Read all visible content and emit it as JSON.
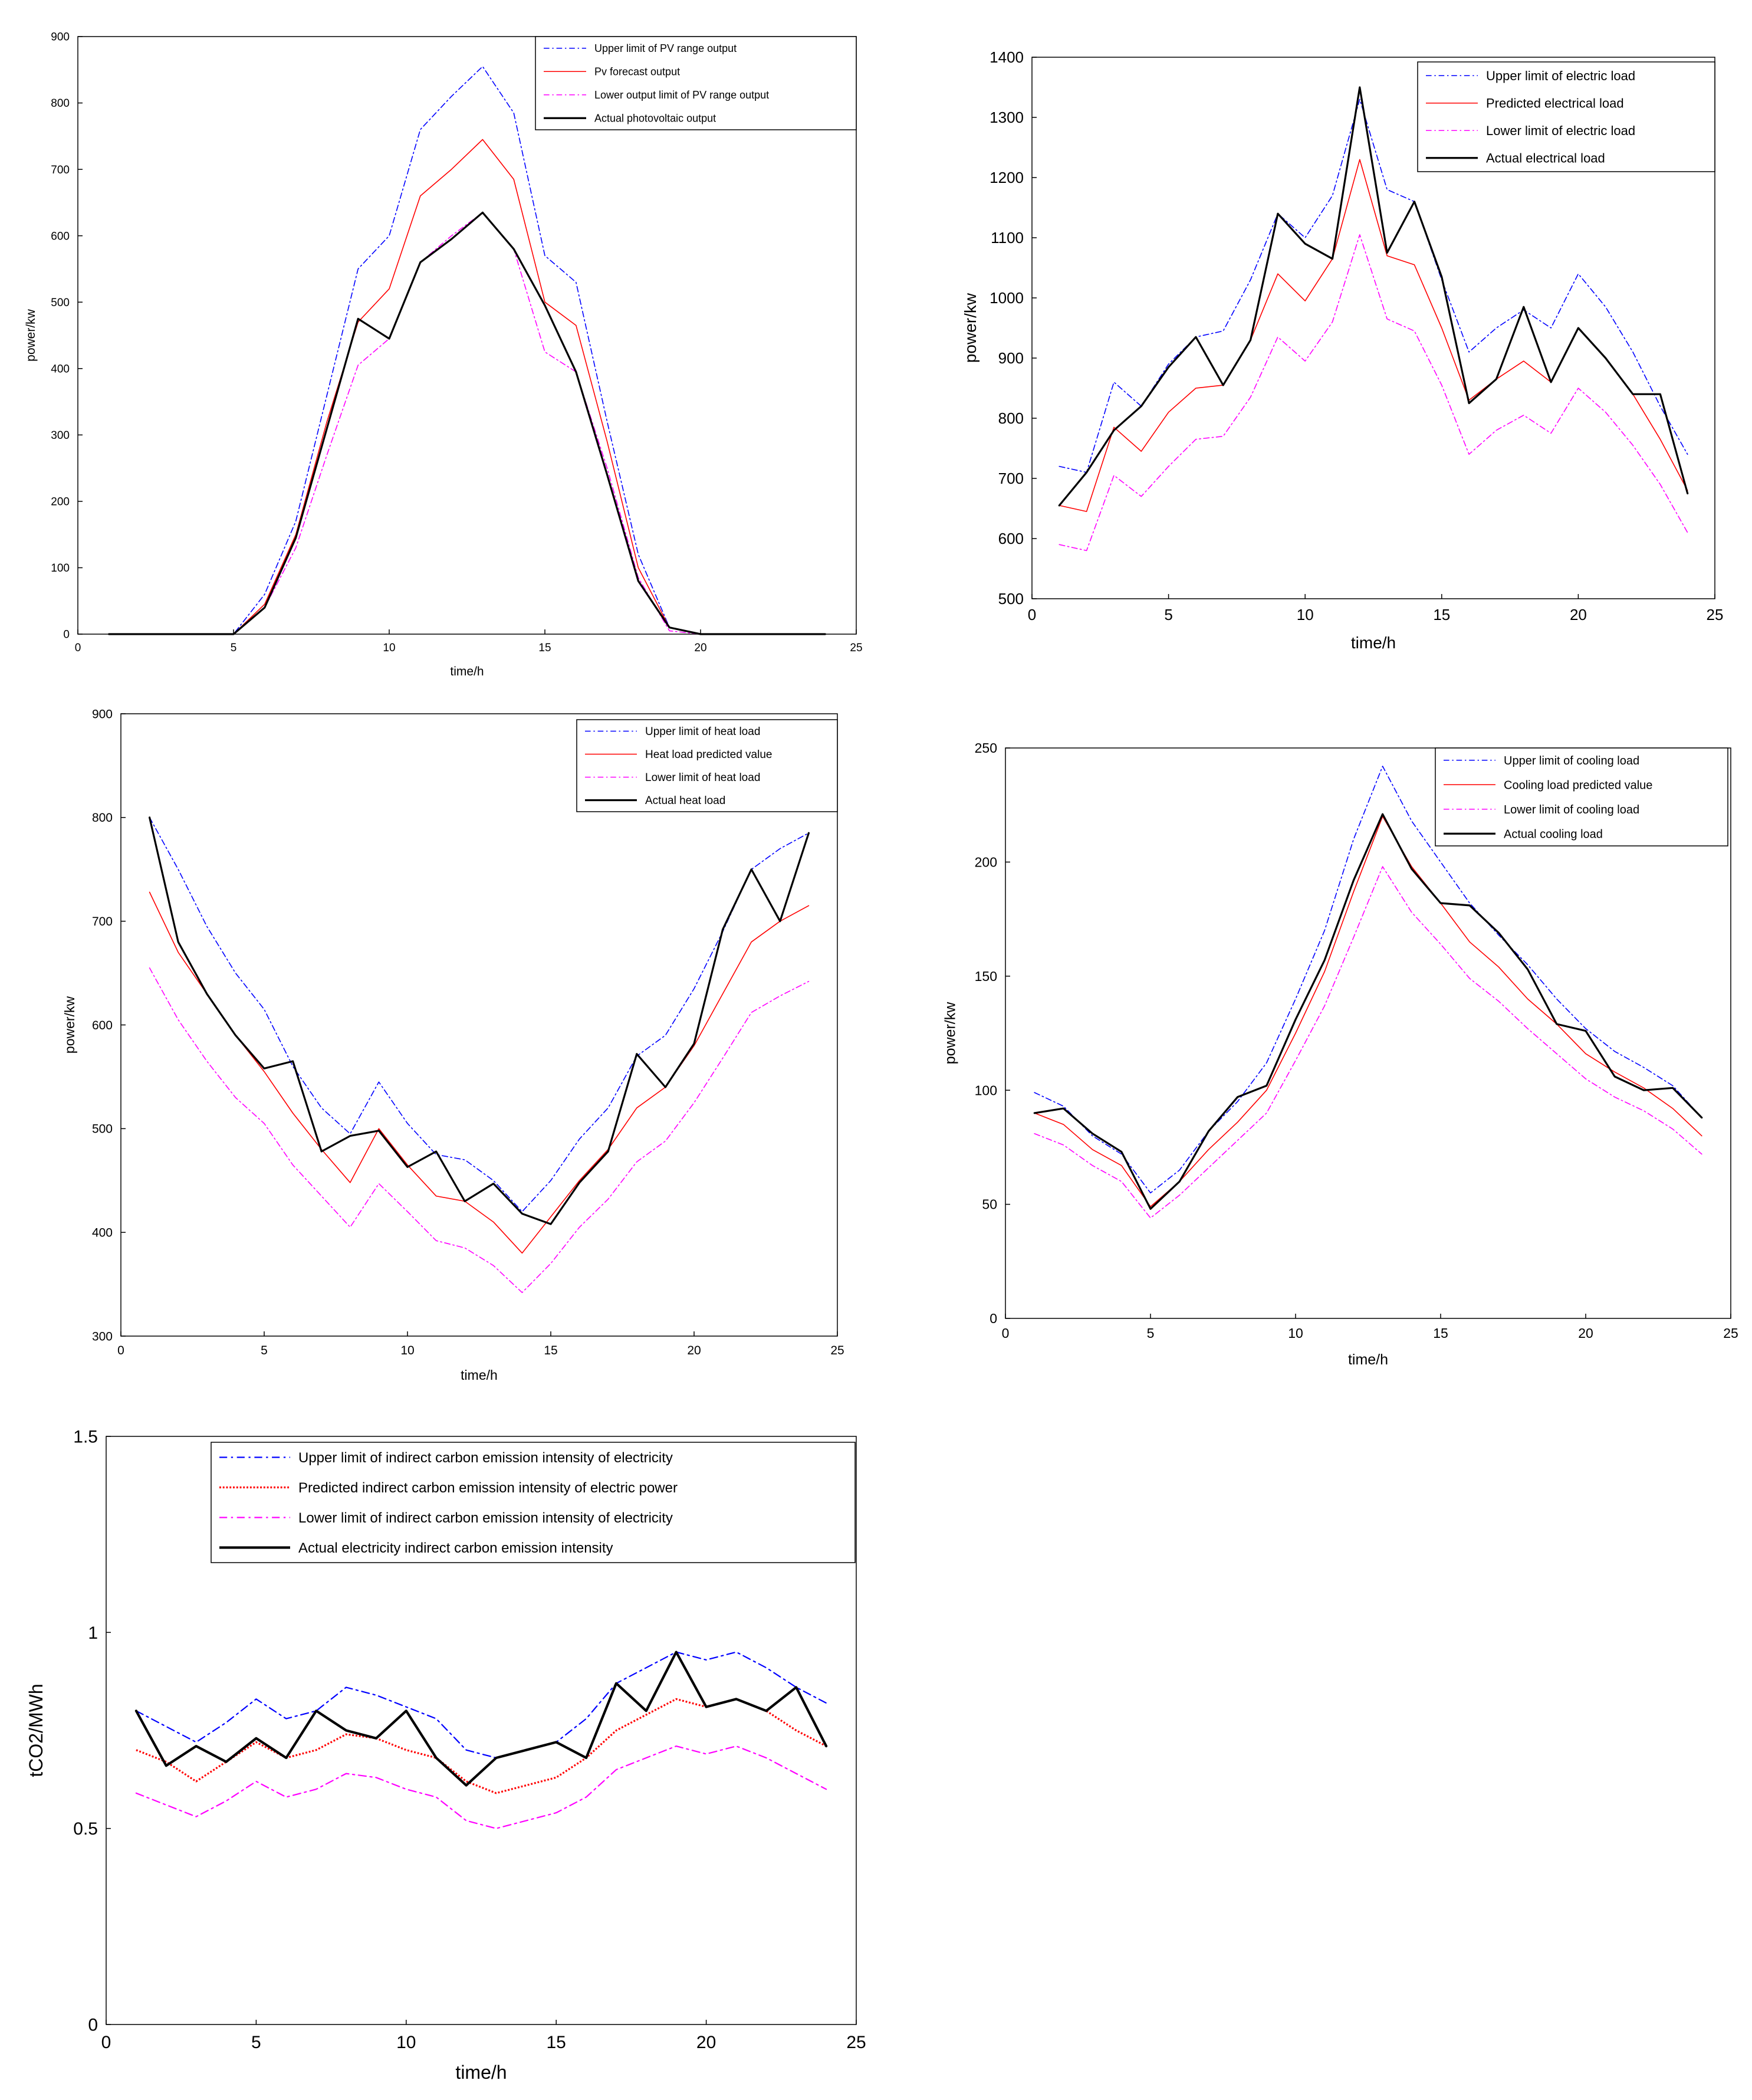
{
  "chart_data": [
    {
      "type": "line",
      "id": "pv",
      "title": "",
      "xlabel": "time/h",
      "ylabel": "power/kw",
      "xlim": [
        0,
        25
      ],
      "ylim": [
        0,
        900
      ],
      "xticks": [
        0,
        5,
        10,
        15,
        20,
        25
      ],
      "yticks": [
        0,
        100,
        200,
        300,
        400,
        500,
        600,
        700,
        800,
        900
      ],
      "x": [
        1,
        2,
        3,
        4,
        5,
        6,
        7,
        8,
        9,
        10,
        11,
        12,
        13,
        14,
        15,
        16,
        17,
        18,
        19,
        20,
        21,
        22,
        23,
        24
      ],
      "legend_position": "top-right",
      "series": [
        {
          "name": "Upper limit of PV range output",
          "color": "#0000ff",
          "style": "dashdot",
          "width": 1.6,
          "values": [
            0,
            0,
            0,
            0,
            0,
            60,
            170,
            360,
            550,
            600,
            760,
            810,
            855,
            785,
            570,
            530,
            320,
            120,
            10,
            0,
            0,
            0,
            0,
            0
          ]
        },
        {
          "name": "Pv forecast output",
          "color": "#ff0000",
          "style": "solid",
          "width": 1.6,
          "values": [
            0,
            0,
            0,
            0,
            0,
            45,
            150,
            320,
            470,
            520,
            660,
            700,
            745,
            685,
            500,
            465,
            290,
            100,
            10,
            0,
            0,
            0,
            0,
            0
          ]
        },
        {
          "name": "Lower output limit of PV range output",
          "color": "#ff00ff",
          "style": "dashdot",
          "width": 1.6,
          "values": [
            0,
            0,
            0,
            0,
            0,
            40,
            130,
            270,
            405,
            445,
            560,
            600,
            635,
            580,
            425,
            395,
            250,
            85,
            5,
            0,
            0,
            0,
            0,
            0
          ]
        },
        {
          "name": "Actual photovoltaic output",
          "color": "#000000",
          "style": "solid",
          "width": 3.2,
          "values": [
            0,
            0,
            0,
            0,
            0,
            40,
            145,
            310,
            475,
            445,
            560,
            595,
            635,
            580,
            495,
            395,
            240,
            80,
            10,
            0,
            0,
            0,
            0,
            0
          ]
        }
      ]
    },
    {
      "type": "line",
      "id": "electric",
      "title": "",
      "xlabel": "time/h",
      "ylabel": "power/kw",
      "xlim": [
        0,
        25
      ],
      "ylim": [
        500,
        1400
      ],
      "xticks": [
        0,
        5,
        10,
        15,
        20,
        25
      ],
      "yticks": [
        500,
        600,
        700,
        800,
        900,
        1000,
        1100,
        1200,
        1300,
        1400
      ],
      "x": [
        1,
        2,
        3,
        4,
        5,
        6,
        7,
        8,
        9,
        10,
        11,
        12,
        13,
        14,
        15,
        16,
        17,
        18,
        19,
        20,
        21,
        22,
        23,
        24
      ],
      "legend_position": "top-right",
      "series": [
        {
          "name": "Upper limit of electric load",
          "color": "#0000ff",
          "style": "dashdot",
          "width": 1.6,
          "values": [
            720,
            710,
            860,
            820,
            890,
            935,
            945,
            1030,
            1140,
            1100,
            1170,
            1330,
            1180,
            1160,
            1030,
            910,
            950,
            980,
            950,
            1040,
            985,
            910,
            820,
            740
          ]
        },
        {
          "name": "Predicted electrical load",
          "color": "#ff0000",
          "style": "solid",
          "width": 1.6,
          "values": [
            655,
            645,
            785,
            745,
            810,
            850,
            855,
            930,
            1040,
            995,
            1065,
            1230,
            1070,
            1055,
            950,
            830,
            865,
            895,
            860,
            950,
            900,
            840,
            765,
            680
          ]
        },
        {
          "name": "Lower limit of electric load",
          "color": "#ff00ff",
          "style": "dashdot",
          "width": 1.6,
          "values": [
            590,
            580,
            705,
            670,
            720,
            765,
            770,
            835,
            935,
            895,
            960,
            1105,
            965,
            945,
            855,
            740,
            780,
            805,
            775,
            850,
            810,
            755,
            690,
            610
          ]
        },
        {
          "name": "Actual electrical load",
          "color": "#000000",
          "style": "solid",
          "width": 3.2,
          "values": [
            655,
            710,
            780,
            820,
            885,
            935,
            855,
            930,
            1140,
            1090,
            1065,
            1350,
            1075,
            1160,
            1035,
            825,
            865,
            985,
            860,
            950,
            900,
            840,
            840,
            675
          ]
        }
      ]
    },
    {
      "type": "line",
      "id": "heat",
      "title": "",
      "xlabel": "time/h",
      "ylabel": "power/kw",
      "xlim": [
        0,
        25
      ],
      "ylim": [
        300,
        900
      ],
      "xticks": [
        0,
        5,
        10,
        15,
        20,
        25
      ],
      "yticks": [
        300,
        400,
        500,
        600,
        700,
        800,
        900
      ],
      "x": [
        1,
        2,
        3,
        4,
        5,
        6,
        7,
        8,
        9,
        10,
        11,
        12,
        13,
        14,
        15,
        16,
        17,
        18,
        19,
        20,
        21,
        22,
        23,
        24
      ],
      "legend_position": "top-right",
      "series": [
        {
          "name": "Upper limit of heat load",
          "color": "#0000ff",
          "style": "dashdot",
          "width": 1.6,
          "values": [
            800,
            750,
            695,
            650,
            615,
            560,
            520,
            495,
            545,
            505,
            475,
            470,
            450,
            420,
            450,
            490,
            520,
            570,
            590,
            635,
            690,
            750,
            770,
            785
          ]
        },
        {
          "name": "Heat load predicted value",
          "color": "#ff0000",
          "style": "solid",
          "width": 1.6,
          "values": [
            728,
            670,
            630,
            590,
            555,
            515,
            480,
            448,
            500,
            465,
            435,
            430,
            410,
            380,
            415,
            450,
            480,
            520,
            540,
            580,
            630,
            680,
            700,
            715
          ]
        },
        {
          "name": "Lower limit of heat load",
          "color": "#ff00ff",
          "style": "dashdot",
          "width": 1.6,
          "values": [
            655,
            605,
            565,
            530,
            505,
            465,
            435,
            405,
            447,
            420,
            392,
            385,
            368,
            342,
            370,
            405,
            432,
            468,
            488,
            525,
            568,
            612,
            628,
            642
          ]
        },
        {
          "name": "Actual heat load",
          "color": "#000000",
          "style": "solid",
          "width": 3.2,
          "values": [
            800,
            680,
            630,
            590,
            558,
            565,
            478,
            493,
            498,
            463,
            478,
            430,
            447,
            418,
            408,
            448,
            478,
            572,
            540,
            582,
            692,
            750,
            700,
            785
          ]
        }
      ]
    },
    {
      "type": "line",
      "id": "cooling",
      "title": "",
      "xlabel": "time/h",
      "ylabel": "power/kw",
      "xlim": [
        0,
        25
      ],
      "ylim": [
        0,
        250
      ],
      "xticks": [
        0,
        5,
        10,
        15,
        20,
        25
      ],
      "yticks": [
        0,
        50,
        100,
        150,
        200,
        250
      ],
      "x": [
        1,
        2,
        3,
        4,
        5,
        6,
        7,
        8,
        9,
        10,
        11,
        12,
        13,
        14,
        15,
        16,
        17,
        18,
        19,
        20,
        21,
        22,
        23,
        24
      ],
      "legend_position": "top-right",
      "series": [
        {
          "name": "Upper limit of cooling load",
          "color": "#0000ff",
          "style": "dashdot",
          "width": 1.6,
          "values": [
            99,
            93,
            80,
            72,
            55,
            65,
            82,
            95,
            112,
            140,
            170,
            210,
            242,
            218,
            200,
            182,
            168,
            155,
            140,
            127,
            117,
            110,
            102,
            88
          ]
        },
        {
          "name": "Cooling load predicted value",
          "color": "#ff0000",
          "style": "solid",
          "width": 1.6,
          "values": [
            90,
            85,
            74,
            67,
            49,
            60,
            74,
            86,
            100,
            125,
            152,
            187,
            220,
            198,
            182,
            165,
            154,
            140,
            129,
            116,
            108,
            101,
            92,
            80
          ]
        },
        {
          "name": "Lower limit of cooling load",
          "color": "#ff00ff",
          "style": "dashdot",
          "width": 1.6,
          "values": [
            81,
            76,
            67,
            60,
            44,
            54,
            66,
            78,
            90,
            113,
            137,
            167,
            198,
            178,
            164,
            149,
            139,
            127,
            116,
            105,
            97,
            91,
            83,
            72
          ]
        },
        {
          "name": "Actual cooling load",
          "color": "#000000",
          "style": "solid",
          "width": 3.2,
          "values": [
            90,
            92,
            81,
            73,
            48,
            60,
            82,
            97,
            102,
            131,
            157,
            192,
            221,
            197,
            182,
            181,
            169,
            153,
            129,
            126,
            106,
            100,
            101,
            88
          ]
        }
      ]
    },
    {
      "type": "line",
      "id": "carbon",
      "title": "",
      "xlabel": "time/h",
      "ylabel": "tCO2/MWh",
      "xlim": [
        0,
        25
      ],
      "ylim": [
        0,
        1.5
      ],
      "xticks": [
        0,
        5,
        10,
        15,
        20,
        25
      ],
      "yticks": [
        0,
        0.5,
        1,
        1.5
      ],
      "x": [
        1,
        2,
        3,
        4,
        5,
        6,
        7,
        8,
        9,
        10,
        11,
        12,
        13,
        14,
        15,
        16,
        17,
        18,
        19,
        20,
        21,
        22,
        23,
        24
      ],
      "legend_position": "top",
      "series": [
        {
          "name": "Upper limit of indirect carbon emission intensity of electricity",
          "color": "#0000ff",
          "style": "dashdot",
          "width": 2.2,
          "values": [
            0.8,
            0.76,
            0.72,
            0.77,
            0.83,
            0.78,
            0.8,
            0.86,
            0.84,
            0.81,
            0.78,
            0.7,
            0.68,
            0.7,
            0.72,
            0.78,
            0.87,
            0.91,
            0.95,
            0.93,
            0.95,
            0.91,
            0.86,
            0.82
          ]
        },
        {
          "name": "Predicted indirect carbon emission intensity of electric power",
          "color": "#ff0000",
          "style": "dotted",
          "width": 3.2,
          "values": [
            0.7,
            0.67,
            0.62,
            0.67,
            0.72,
            0.68,
            0.7,
            0.74,
            0.73,
            0.7,
            0.68,
            0.62,
            0.59,
            0.61,
            0.63,
            0.68,
            0.75,
            0.79,
            0.83,
            0.81,
            0.83,
            0.8,
            0.75,
            0.71
          ]
        },
        {
          "name": "Lower limit of indirect carbon emission intensity of electricity",
          "color": "#ff00ff",
          "style": "dashdot",
          "width": 2.2,
          "values": [
            0.59,
            0.56,
            0.53,
            0.57,
            0.62,
            0.58,
            0.6,
            0.64,
            0.63,
            0.6,
            0.58,
            0.52,
            0.5,
            0.52,
            0.54,
            0.58,
            0.65,
            0.68,
            0.71,
            0.69,
            0.71,
            0.68,
            0.64,
            0.6
          ]
        },
        {
          "name": "Actual electricity indirect carbon emission intensity",
          "color": "#000000",
          "style": "solid",
          "width": 4.2,
          "values": [
            0.8,
            0.66,
            0.71,
            0.67,
            0.73,
            0.68,
            0.8,
            0.75,
            0.73,
            0.8,
            0.68,
            0.61,
            0.68,
            0.7,
            0.72,
            0.68,
            0.87,
            0.8,
            0.95,
            0.81,
            0.83,
            0.8,
            0.86,
            0.71
          ]
        }
      ]
    }
  ]
}
